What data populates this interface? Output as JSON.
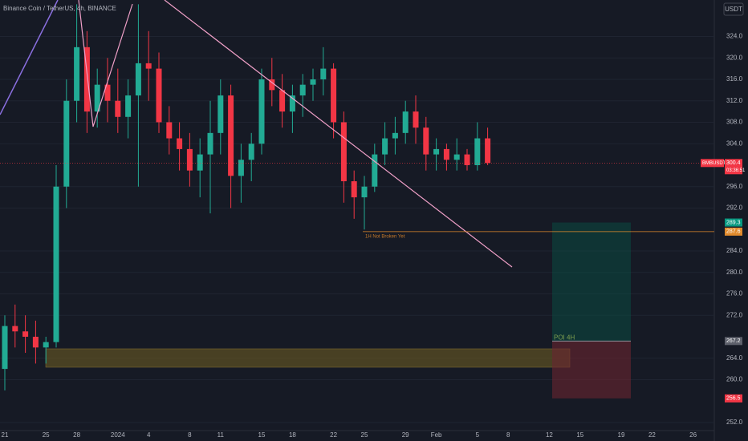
{
  "chart_data": {
    "type": "candlestick",
    "title": "Binance Coin / TetherUS, 4h, BINANCE",
    "currency": "USDT",
    "categories": [
      "21",
      null,
      null,
      null,
      "25",
      null,
      null,
      "28",
      null,
      null,
      null,
      "2024",
      null,
      null,
      "4",
      null,
      null,
      null,
      "8",
      null,
      null,
      "11",
      null,
      null,
      null,
      "15",
      null,
      null,
      "18",
      null,
      null,
      null,
      "22",
      null,
      null,
      "25",
      null,
      null,
      null,
      "29",
      null,
      null,
      "Feb",
      null,
      null,
      null,
      "5",
      null,
      null,
      "8",
      null,
      null,
      null,
      "12",
      null,
      null,
      "15",
      null,
      null,
      null,
      "19",
      null,
      null,
      "22",
      null,
      null,
      null,
      "26"
    ],
    "open": [
      262,
      270,
      269,
      268,
      266,
      267,
      296,
      312,
      322,
      310,
      315,
      312,
      309,
      313,
      319,
      318,
      308,
      305,
      303,
      299,
      302,
      306,
      313,
      298,
      301,
      304,
      316,
      314,
      310,
      313,
      315,
      316,
      318,
      308,
      297,
      294,
      296,
      302,
      305,
      306,
      310,
      307,
      302,
      303,
      301,
      302,
      300,
      305,
      null,
      null,
      null,
      null,
      null,
      null,
      null,
      null,
      null,
      null,
      null,
      null,
      null,
      null,
      null,
      null,
      null,
      null,
      null,
      null
    ],
    "high": [
      272,
      274,
      272,
      271,
      268,
      300,
      316,
      330,
      325,
      318,
      320,
      318,
      316,
      330,
      325,
      321,
      311,
      308,
      306,
      305,
      312,
      316,
      315,
      304,
      306,
      318,
      320,
      317,
      315,
      317,
      318,
      322,
      319,
      310,
      299,
      298,
      304,
      308,
      309,
      312,
      313,
      309,
      305,
      304,
      305,
      303,
      308,
      307,
      null,
      null,
      null,
      null,
      null,
      null,
      null,
      null,
      null,
      null,
      null,
      null,
      null,
      null,
      null,
      null,
      null,
      null,
      null,
      null
    ],
    "low": [
      258,
      266,
      265,
      263,
      263,
      266,
      292,
      308,
      306,
      307,
      308,
      306,
      305,
      296,
      312,
      306,
      302,
      299,
      296,
      294,
      291,
      302,
      292,
      293,
      297,
      302,
      311,
      307,
      306,
      309,
      312,
      313,
      305,
      293,
      290,
      288,
      295,
      300,
      302,
      304,
      304,
      299,
      299,
      299,
      299,
      299,
      299,
      300,
      null,
      null,
      null,
      null,
      null,
      null,
      null,
      null,
      null,
      null,
      null,
      null,
      null,
      null,
      null,
      null,
      null,
      null,
      null,
      null
    ],
    "close": [
      270,
      269,
      268,
      266,
      267,
      296,
      312,
      322,
      310,
      315,
      312,
      309,
      313,
      319,
      318,
      308,
      305,
      303,
      299,
      302,
      306,
      313,
      298,
      301,
      304,
      316,
      314,
      310,
      313,
      315,
      316,
      318,
      308,
      297,
      294,
      296,
      302,
      305,
      306,
      310,
      307,
      302,
      303,
      301,
      302,
      300,
      305,
      300.4,
      null,
      null,
      null,
      null,
      null,
      null,
      null,
      null,
      null,
      null,
      null,
      null,
      null,
      null,
      null,
      null,
      null,
      null,
      null,
      null
    ],
    "up_color": "#22ab94",
    "down_color": "#f23645",
    "ylim": [
      250.5,
      330.8
    ],
    "yticks": [
      {
        "value": 252,
        "label": "252.0"
      },
      {
        "value": 260,
        "label": "260.0"
      },
      {
        "value": 264,
        "label": "264.0"
      },
      {
        "value": 272,
        "label": "272.0"
      },
      {
        "value": 276,
        "label": "276.0"
      },
      {
        "value": 280,
        "label": "280.0"
      },
      {
        "value": 284,
        "label": "284.0"
      },
      {
        "value": 292,
        "label": "292.0"
      },
      {
        "value": 296,
        "label": "296.0"
      },
      {
        "value": 304,
        "label": "304.0"
      },
      {
        "value": 308,
        "label": "308.0"
      },
      {
        "value": 312,
        "label": "312.0"
      },
      {
        "value": 316,
        "label": "316.0"
      },
      {
        "value": 320,
        "label": "320.0"
      },
      {
        "value": 324,
        "label": "324.0"
      }
    ],
    "grid": true,
    "last_price": {
      "symbol": "BMBUSDT",
      "value": 300.4,
      "countdown": "03:36:51"
    },
    "level": {
      "value": 287.6,
      "label": "1H Not Broken Yet"
    },
    "position": {
      "target": 289.3,
      "entry": 267.2,
      "stop": 256.5,
      "label": "POI 4H"
    }
  }
}
